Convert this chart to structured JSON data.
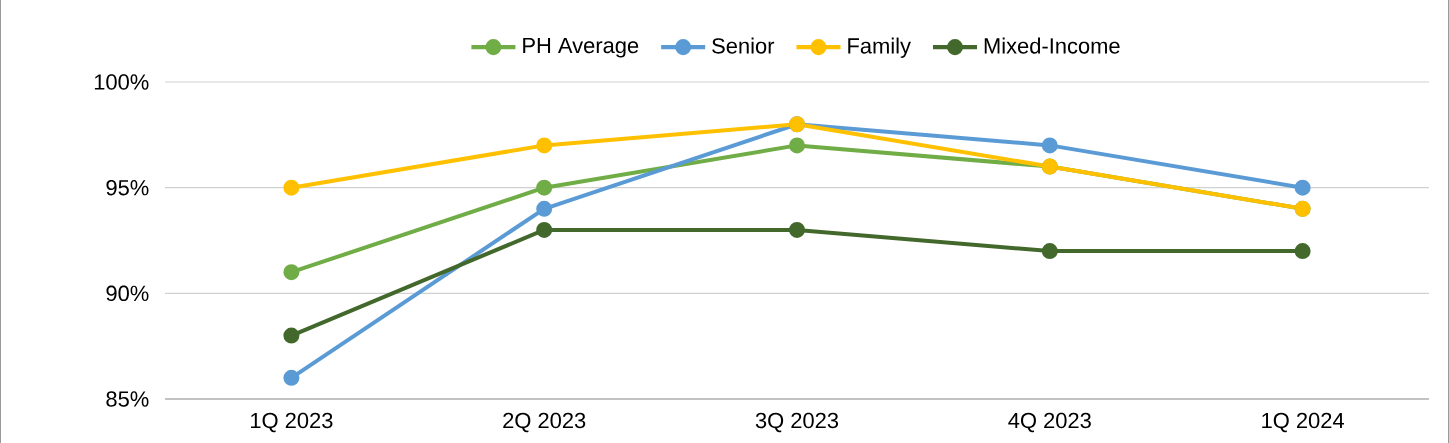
{
  "chart_data": {
    "type": "line",
    "categories": [
      "1Q 2023",
      "2Q 2023",
      "3Q 2023",
      "4Q 2023",
      "1Q 2024"
    ],
    "series": [
      {
        "name": "PH Average",
        "color": "#70ad47",
        "values": [
          91,
          95,
          97,
          96,
          94
        ]
      },
      {
        "name": "Senior",
        "color": "#5b9bd5",
        "values": [
          86,
          94,
          98,
          97,
          95
        ]
      },
      {
        "name": "Family",
        "color": "#ffc000",
        "values": [
          95,
          97,
          98,
          96,
          94
        ]
      },
      {
        "name": "Mixed-Income",
        "color": "#43682b",
        "values": [
          88,
          93,
          93,
          92,
          92
        ]
      }
    ],
    "ylim": [
      85,
      100
    ],
    "yticks": [
      {
        "value": 85,
        "label": "85%"
      },
      {
        "value": 90,
        "label": "90%"
      },
      {
        "value": 95,
        "label": "95%"
      },
      {
        "value": 100,
        "label": "100%"
      }
    ],
    "grid": "y",
    "legend": "top",
    "marker": "circle",
    "line_style": "solid"
  }
}
